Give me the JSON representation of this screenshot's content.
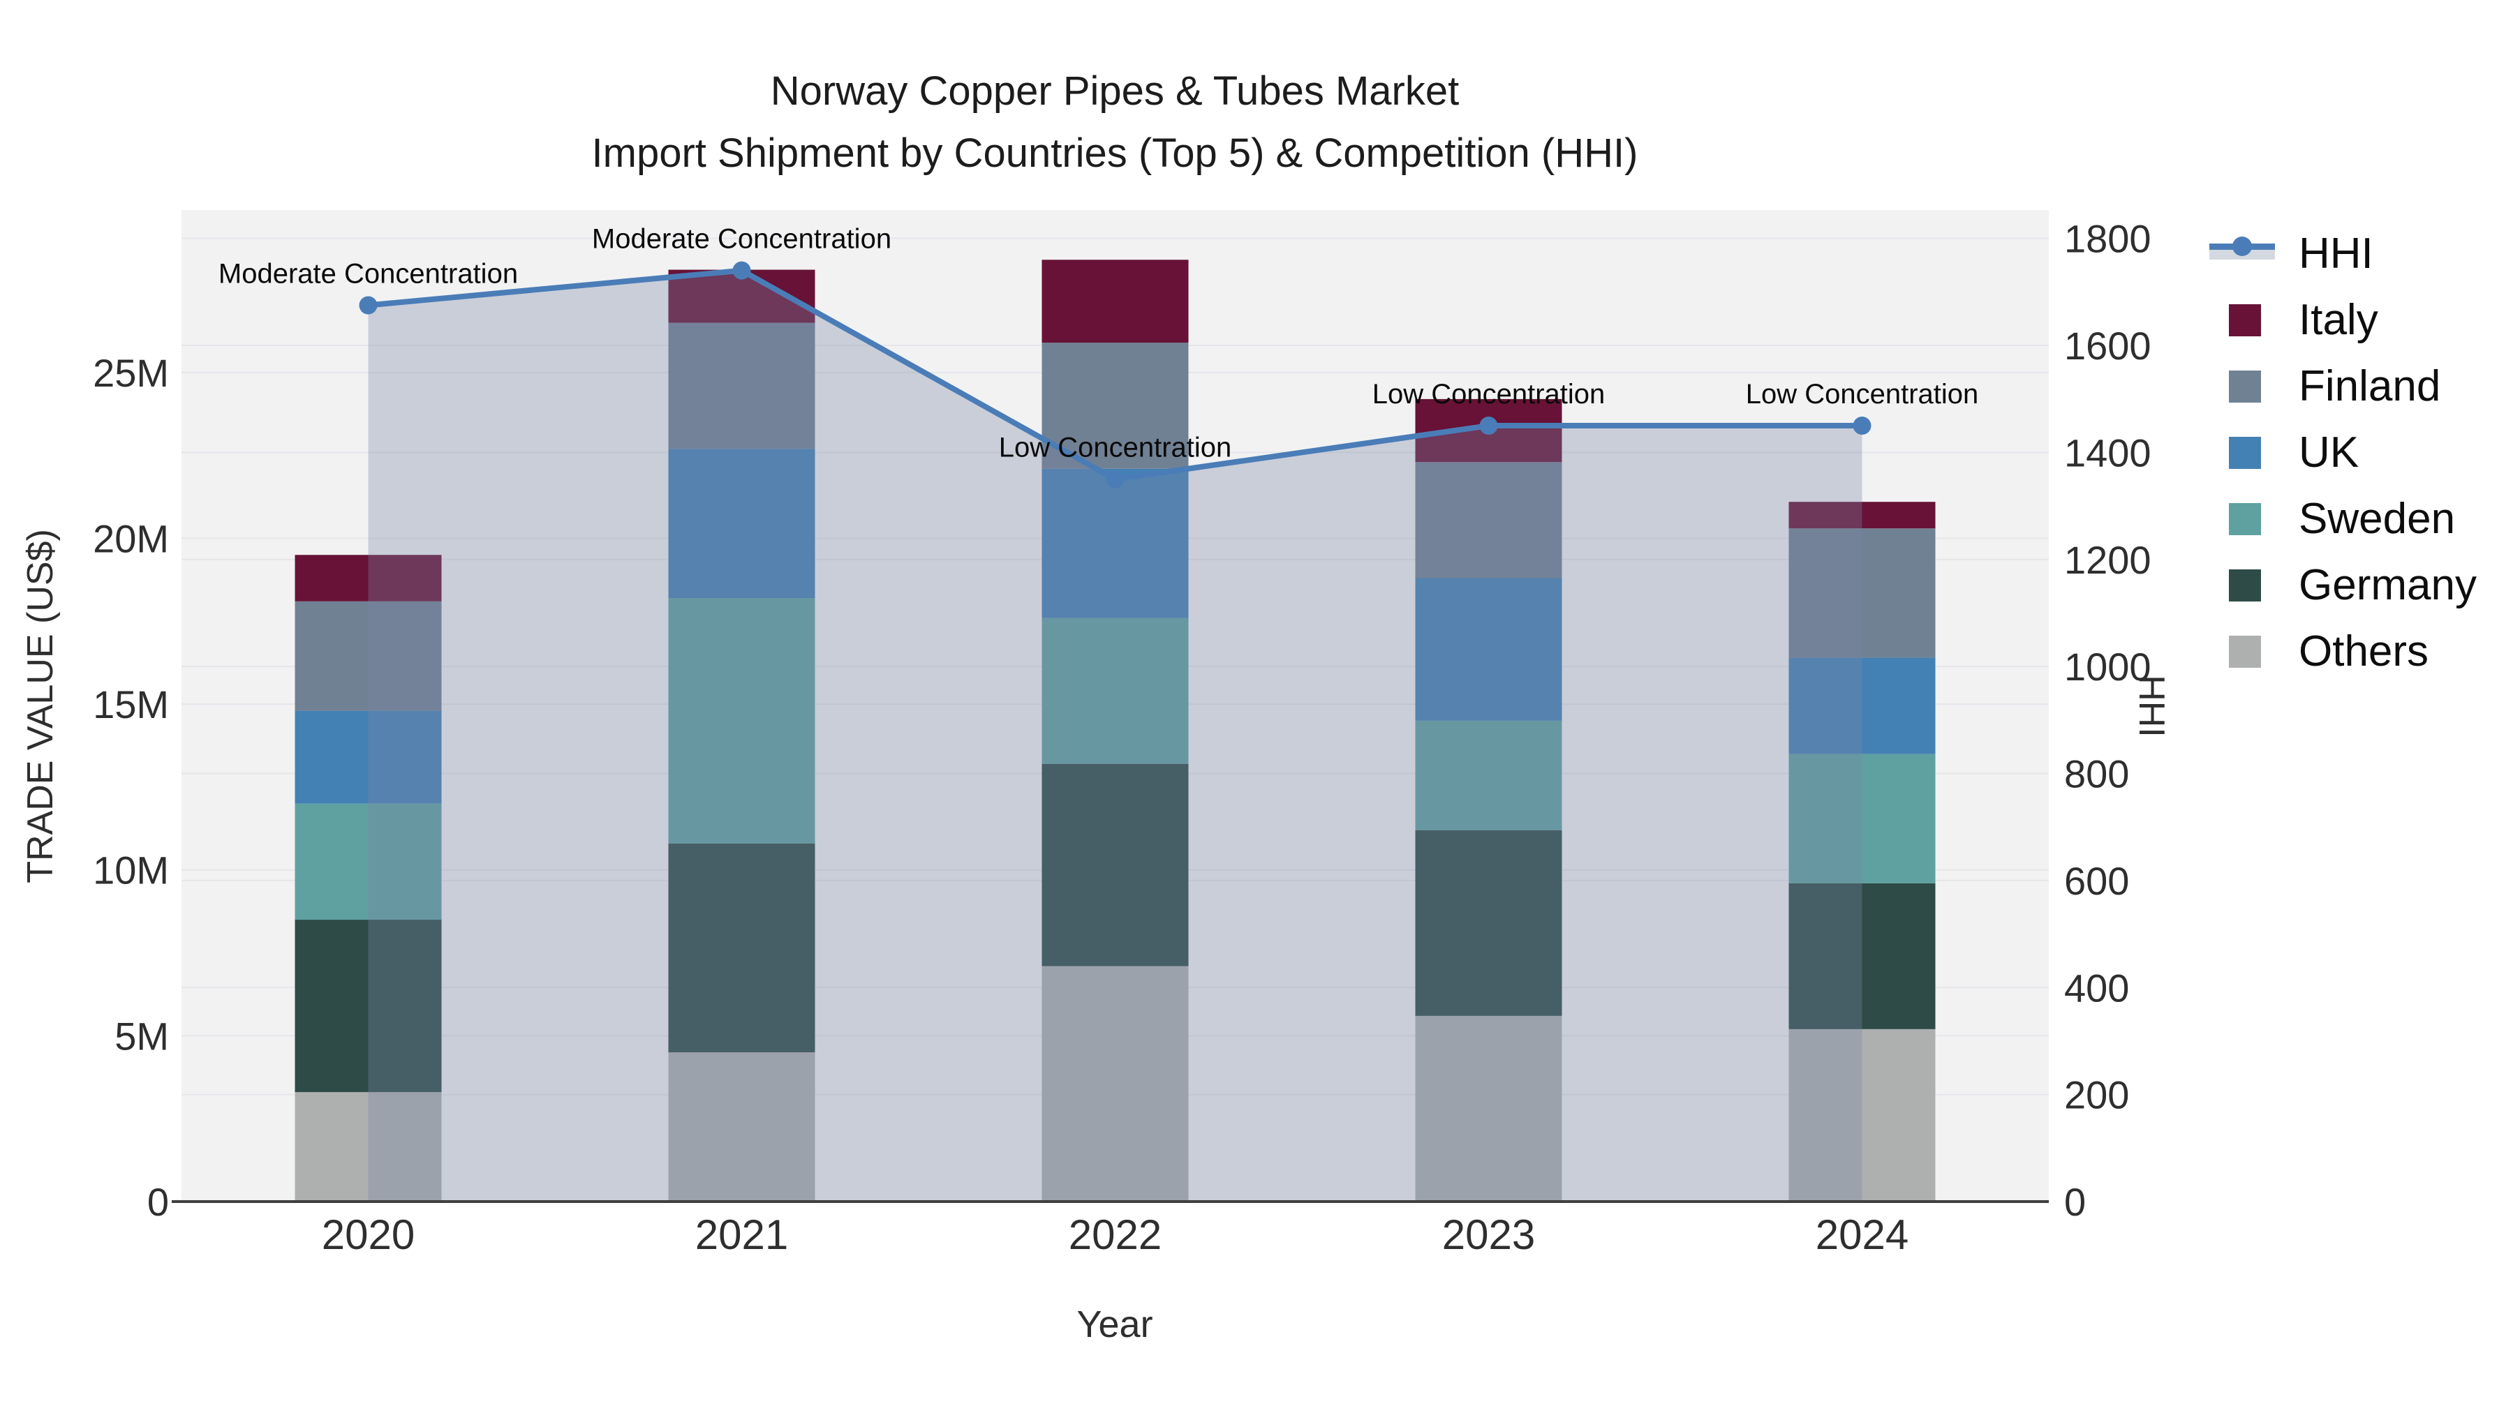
{
  "title": {
    "line1": "Norway Copper Pipes & Tubes Market",
    "line2": "Import Shipment by Countries (Top 5) & Competition (HHI)"
  },
  "legend": {
    "position": "right",
    "items": [
      {
        "label": "HHI",
        "swatch": "line",
        "color": "#4a7db7"
      },
      {
        "label": "Italy",
        "swatch": "box",
        "color": "#671236"
      },
      {
        "label": "Finland",
        "swatch": "box",
        "color": "#718194"
      },
      {
        "label": "UK",
        "swatch": "box",
        "color": "#4381b4"
      },
      {
        "label": "Sweden",
        "swatch": "box",
        "color": "#5fa1a1"
      },
      {
        "label": "Germany",
        "swatch": "box",
        "color": "#2e4b47"
      },
      {
        "label": "Others",
        "swatch": "box",
        "color": "#aeb0af"
      }
    ]
  },
  "chart_data": {
    "type": "bar",
    "subtype": "stacked-bars-with-line-area",
    "title": "Norway Copper Pipes & Tubes Market Import Shipment by Countries (Top 5) & Competition (HHI)",
    "categories": [
      "2020",
      "2021",
      "2022",
      "2023",
      "2024"
    ],
    "xlabel": "Year",
    "ylabel_left": "TRADE VALUE (US$)",
    "ylabel_right": "HHI",
    "y_left": {
      "unit": "M US$",
      "range": [
        0,
        29.9
      ],
      "tick_values": [
        0,
        5,
        10,
        15,
        20,
        25
      ],
      "tick_labels": [
        "0",
        "5M",
        "10M",
        "15M",
        "20M",
        "25M"
      ]
    },
    "y_right": {
      "range": [
        0,
        1853
      ],
      "tick_values": [
        0,
        200,
        400,
        600,
        800,
        1000,
        1200,
        1400,
        1600,
        1800
      ],
      "tick_labels": [
        "0",
        "200",
        "400",
        "600",
        "800",
        "1000",
        "1200",
        "1400",
        "1600",
        "1800"
      ]
    },
    "series": [
      {
        "name": "Others",
        "color": "#aeb0af",
        "values": [
          3.3,
          4.5,
          7.1,
          5.6,
          5.2
        ]
      },
      {
        "name": "Germany",
        "color": "#2e4b47",
        "values": [
          5.2,
          6.3,
          6.1,
          5.6,
          4.4
        ]
      },
      {
        "name": "Sweden",
        "color": "#5fa1a1",
        "values": [
          3.5,
          7.4,
          4.4,
          3.3,
          3.9
        ]
      },
      {
        "name": "UK",
        "color": "#4381b4",
        "values": [
          2.8,
          4.5,
          4.5,
          4.3,
          2.9
        ]
      },
      {
        "name": "Finland",
        "color": "#718194",
        "values": [
          3.3,
          3.8,
          3.8,
          3.5,
          3.9
        ]
      },
      {
        "name": "Italy",
        "color": "#671236",
        "values": [
          1.4,
          1.6,
          2.5,
          1.9,
          0.8
        ]
      }
    ],
    "stack_totals": [
      19.5,
      28.1,
      28.4,
      24.2,
      21.1
    ],
    "hhi": {
      "name": "HHI",
      "axis": "right",
      "values": [
        1675,
        1740,
        1350,
        1450,
        1450
      ],
      "line_color": "#4a7db7",
      "fill_color": "rgba(120,135,165,0.33)",
      "marker": "circle"
    },
    "annotations": [
      {
        "category": "2020",
        "text": "Moderate Concentration"
      },
      {
        "category": "2021",
        "text": "Moderate Concentration"
      },
      {
        "category": "2022",
        "text": "Low Concentration"
      },
      {
        "category": "2023",
        "text": "Low Concentration"
      },
      {
        "category": "2024",
        "text": "Low Concentration"
      }
    ],
    "style": {
      "plot_bg": "#f2f2f3",
      "grid_color": "#e5e6e9",
      "spine_color": "#3f3f3f",
      "tick_color": "#2e2e2e",
      "annotation_color": "#0a0a0a",
      "grid": "on"
    }
  }
}
